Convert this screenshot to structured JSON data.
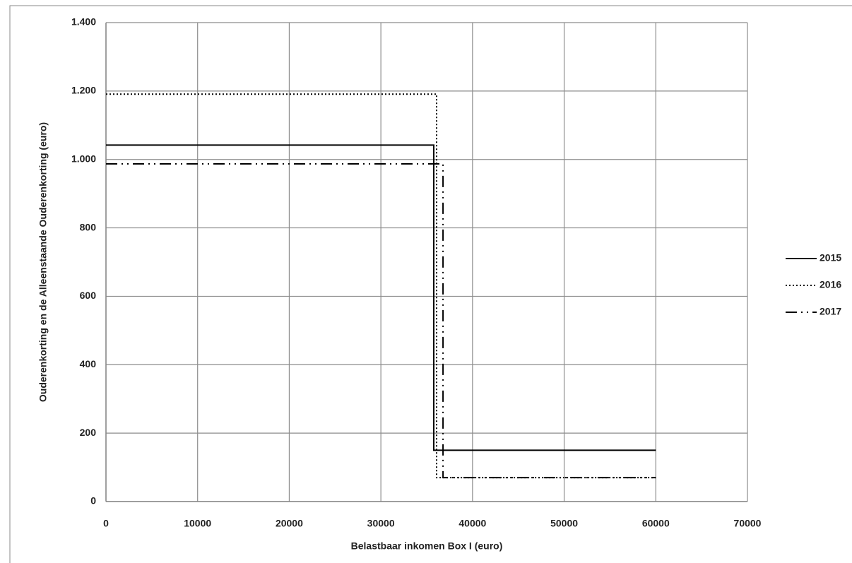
{
  "chart_data": {
    "type": "line",
    "xlabel": "Belastbaar inkomen Box I (euro)",
    "ylabel": "Ouderenkorting en de Alleenstaande Ouderenkorting (euro)",
    "xlim": [
      0,
      70000
    ],
    "xticks": [
      0,
      10000,
      20000,
      30000,
      40000,
      50000,
      60000,
      70000
    ],
    "ylim": [
      0,
      1400
    ],
    "yticks": [
      0,
      200,
      400,
      600,
      800,
      {
        "value": 1000,
        "label": "1.000"
      },
      {
        "value": 1200,
        "label": "1.200"
      },
      {
        "value": 1400,
        "label": "1.400"
      }
    ],
    "grid": true,
    "legend": "right",
    "series": [
      {
        "name": "2015",
        "color": "#000000",
        "style": "solid",
        "x": [
          0,
          35770,
          35770,
          60000
        ],
        "values": [
          1042,
          1042,
          150,
          150
        ]
      },
      {
        "name": "2016",
        "color": "#000000",
        "style": "dotted",
        "x": [
          0,
          36080,
          36080,
          60000
        ],
        "values": [
          1191,
          1191,
          70,
          70
        ]
      },
      {
        "name": "2017",
        "color": "#000000",
        "style": "dashdot",
        "x": [
          0,
          36780,
          36780,
          60000
        ],
        "values": [
          987,
          987,
          70,
          70
        ]
      }
    ]
  }
}
